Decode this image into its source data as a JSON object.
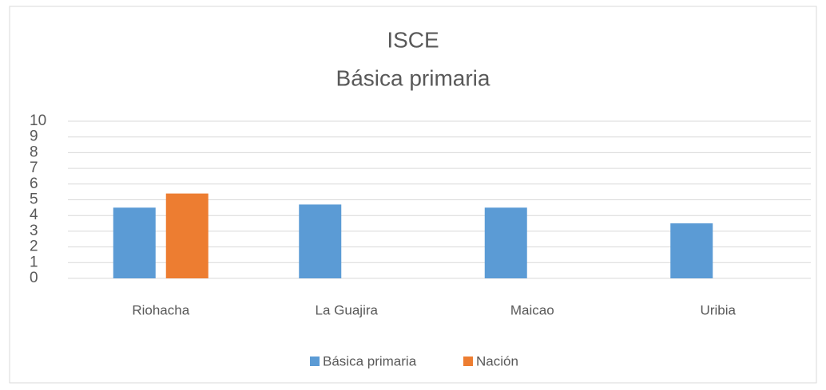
{
  "chart_data": {
    "type": "bar",
    "title": [
      "ISCE",
      "Básica primaria"
    ],
    "categories": [
      "Riohacha",
      "La Guajira",
      "Maicao",
      "Uribia"
    ],
    "series": [
      {
        "name": "Básica primaria",
        "color": "#5b9bd5",
        "values": [
          4.5,
          4.7,
          4.5,
          3.5
        ]
      },
      {
        "name": "Nación",
        "color": "#ed7d31",
        "values": [
          5.4,
          null,
          null,
          null
        ]
      }
    ],
    "ylim": [
      0,
      10
    ],
    "yticks": [
      0,
      1,
      2,
      3,
      4,
      5,
      6,
      7,
      8,
      9,
      10
    ],
    "grid": true,
    "legend": "bottom"
  }
}
